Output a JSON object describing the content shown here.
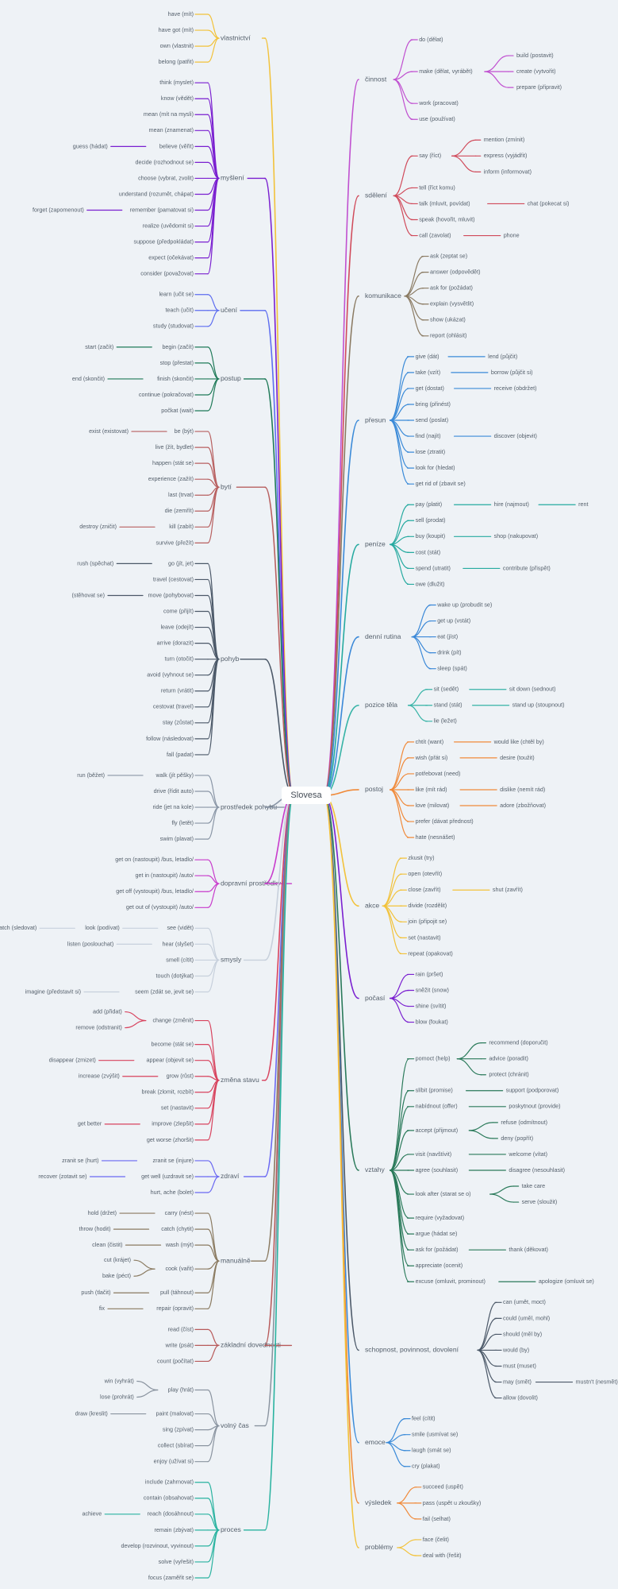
{
  "root": "Slovesa",
  "colors": [
    "#f2c23a",
    "#7a1fd0",
    "#5d6df0",
    "#1f7a58",
    "#b86060",
    "#4b5868",
    "#8a96a6",
    "#c83bcc",
    "#c7d0dc",
    "#d8435e",
    "#6a68f2",
    "#8a7a60",
    "#b85a5a",
    "#8a94a0",
    "#2ab3a0",
    "#c050d0",
    "#d04a5a",
    "#8a7a62",
    "#3a8ad8",
    "#26aaa0",
    "#3a88d8",
    "#36b3a6",
    "#f08a3a",
    "#f2c23a",
    "#7a1fd0",
    "#2a7a5a",
    "#4b5868",
    "#3a8ad8",
    "#f08a3a",
    "#f2c23a"
  ],
  "left": [
    {
      "label": "vlastnictví",
      "children": [
        {
          "label": "have (mít)"
        },
        {
          "label": "have got (mít)"
        },
        {
          "label": "own (vlastnit)"
        },
        {
          "label": "belong (patřit)"
        }
      ]
    },
    {
      "label": "myšlení",
      "children": [
        {
          "label": "think (myslet)"
        },
        {
          "label": "know (vědět)"
        },
        {
          "label": "mean (mít na mysli)"
        },
        {
          "label": "mean (znamenat)"
        },
        {
          "label": "believe (věřit)",
          "pre": "guess (hádat)"
        },
        {
          "label": "decide (rozhodnout se)"
        },
        {
          "label": "choose (vybrat, zvolit)"
        },
        {
          "label": "understand (rozumět, chápat)"
        },
        {
          "label": "remember (pamatovat si)",
          "pre": "forget (zapomenout)"
        },
        {
          "label": "realize (uvědomit si)"
        },
        {
          "label": "suppose (předpokládat)"
        },
        {
          "label": "expect (očekávat)"
        },
        {
          "label": "consider (považovat)"
        }
      ]
    },
    {
      "label": "učení",
      "children": [
        {
          "label": "learn (učit se)"
        },
        {
          "label": "teach (učit)"
        },
        {
          "label": "study (studovat)"
        }
      ]
    },
    {
      "label": "postup",
      "children": [
        {
          "label": "begin (začít)",
          "pre": "start (začít)"
        },
        {
          "label": "stop (přestat)"
        },
        {
          "label": "finish (skončit)",
          "pre": "end (skončit)"
        },
        {
          "label": "continue (pokračovat)"
        },
        {
          "label": "počkat (wait)"
        }
      ]
    },
    {
      "label": "bytí",
      "children": [
        {
          "label": "be (být)",
          "pre": "exist (existovat)"
        },
        {
          "label": "live (žít, bydlet)"
        },
        {
          "label": "happen (stát se)"
        },
        {
          "label": "experience (zažít)"
        },
        {
          "label": "last (trvat)"
        },
        {
          "label": "die (zemřít)"
        },
        {
          "label": "kill (zabít)",
          "pre": "destroy (zničit)"
        },
        {
          "label": "survive (přežít)"
        }
      ]
    },
    {
      "label": "pohyb",
      "children": [
        {
          "label": "go (jít, jet)",
          "pre": "rush (spěchat)"
        },
        {
          "label": "travel (cestovat)"
        },
        {
          "label": "move (pohybovat)",
          "pre": "(stěhovat se)"
        },
        {
          "label": "come (přijít)"
        },
        {
          "label": "leave (odejít)"
        },
        {
          "label": "arrive (dorazit)"
        },
        {
          "label": "turn (otočit)"
        },
        {
          "label": "avoid (vyhnout se)"
        },
        {
          "label": "return (vrátit)"
        },
        {
          "label": "cestovat (travel)"
        },
        {
          "label": "stay (zůstat)"
        },
        {
          "label": "follow (následovat)"
        },
        {
          "label": "fall (padat)"
        }
      ]
    },
    {
      "label": "prostředek pohybu",
      "children": [
        {
          "label": "walk (jít pěšky)",
          "pre": "run (běžet)"
        },
        {
          "label": "drive (řídit auto)"
        },
        {
          "label": "ride (jet na kole)"
        },
        {
          "label": "fly (letět)"
        },
        {
          "label": "swim (plavat)"
        }
      ]
    },
    {
      "label": "dopravní prostředky",
      "children": [
        {
          "label": "get on (nastoupit) /bus, letadlo/"
        },
        {
          "label": "get in (nastoupit) /auto/"
        },
        {
          "label": "get off (vystoupit) /bus, letadlo/"
        },
        {
          "label": "get out of (vystoupit) /auto/"
        }
      ]
    },
    {
      "label": "smysly",
      "children": [
        {
          "label": "see (vidět)",
          "pre": "look (podívat)",
          "pre2": "watch (sledovat)"
        },
        {
          "label": "hear (slyšet)",
          "pre": "listen (poslouchat)"
        },
        {
          "label": "smell (cítit)"
        },
        {
          "label": "touch (dotýkat)"
        },
        {
          "label": "seem (zdát se, jevit se)",
          "pre": "imagine (představit si)"
        }
      ]
    },
    {
      "label": "změna stavu",
      "children": [
        {
          "label": "change (změnit)",
          "pres": [
            "add (přidat)",
            "remove (odstranit)"
          ]
        },
        {
          "label": "become (stát se)"
        },
        {
          "label": "appear (objevit se)",
          "pre": "disappear (zmizet)"
        },
        {
          "label": "grow (růst)",
          "pre": "increase (zvýšit)"
        },
        {
          "label": "break (zlomit, rozbít)"
        },
        {
          "label": "set (nastavit)"
        },
        {
          "label": "improve (zlepšit)",
          "pre": "get better"
        },
        {
          "label": "get worse (zhoršit)"
        }
      ]
    },
    {
      "label": "zdraví",
      "children": [
        {
          "label": "zranit se (injure)",
          "pre": "zranit se (hurt)"
        },
        {
          "label": "get well (uzdravit se)",
          "pre": "recover (zotavit se)"
        },
        {
          "label": "hurt, ache (bolet)"
        }
      ]
    },
    {
      "label": "manuálně",
      "children": [
        {
          "label": "carry (nést)",
          "pre": "hold (držet)"
        },
        {
          "label": "catch (chytit)",
          "pre": "throw (hodit)"
        },
        {
          "label": "wash (mýt)",
          "pre": "clean (čistit)"
        },
        {
          "label": "cook (vařit)",
          "pres": [
            "cut (krájet)",
            "bake (péct)"
          ]
        },
        {
          "label": "pull (táhnout)",
          "pre": "push (tlačit)"
        },
        {
          "label": "repair (opravit)",
          "pre": "fix"
        }
      ]
    },
    {
      "label": "základní dovednosti",
      "children": [
        {
          "label": "read (číst)"
        },
        {
          "label": "write (psát)"
        },
        {
          "label": "count (počítat)"
        }
      ]
    },
    {
      "label": "volný čas",
      "children": [
        {
          "label": "play (hrát)",
          "pres": [
            "win (vyhrát)",
            "lose (prohrát)"
          ]
        },
        {
          "label": "paint (malovat)",
          "pre": "draw (kreslit)"
        },
        {
          "label": "sing (zpívat)"
        },
        {
          "label": "collect (sbírat)"
        },
        {
          "label": "enjoy (užívat si)"
        }
      ]
    },
    {
      "label": "proces",
      "children": [
        {
          "label": "include (zahrnovat)"
        },
        {
          "label": "contain (obsahovat)"
        },
        {
          "label": "reach (dosáhnout)",
          "pre": "achieve"
        },
        {
          "label": "remain (zbývat)"
        },
        {
          "label": "develop (rozvinout, vyvinout)"
        },
        {
          "label": "solve (vyřešit)"
        },
        {
          "label": "focus (zaměřit se)"
        }
      ]
    }
  ],
  "right": [
    {
      "label": "činnost",
      "children": [
        {
          "label": "do (dělat)"
        },
        {
          "label": "make (dělat, vyrábět)",
          "subs": [
            "build (postavit)",
            "create (vytvořit)",
            "prepare (připravit)"
          ]
        },
        {
          "label": "work (pracovat)"
        },
        {
          "label": "use (používat)"
        }
      ]
    },
    {
      "label": "sdělení",
      "children": [
        {
          "label": "say (říct)",
          "subs": [
            "mention (zmínit)",
            "express (vyjádřit)",
            "inform (informovat)"
          ]
        },
        {
          "label": "tell (říct komu)"
        },
        {
          "label": "talk (mluvit, povídat)",
          "post": "chat (pokecat si)"
        },
        {
          "label": "speak (hovořit, mluvit)"
        },
        {
          "label": "call (zavolat)",
          "post": "phone"
        }
      ]
    },
    {
      "label": "komunikace",
      "children": [
        {
          "label": "ask (zeptat se)"
        },
        {
          "label": "answer (odpovědět)"
        },
        {
          "label": "ask for (požádat)"
        },
        {
          "label": "explain (vysvětlit)"
        },
        {
          "label": "show (ukázat)"
        },
        {
          "label": "report (ohlásit)"
        }
      ]
    },
    {
      "label": "přesun",
      "children": [
        {
          "label": "give (dát)",
          "post": "lend (půjčit)"
        },
        {
          "label": "take (vzít)",
          "post": "borrow (půjčit si)"
        },
        {
          "label": "get (dostat)",
          "post": "receive (obdržet)"
        },
        {
          "label": "bring (přinést)"
        },
        {
          "label": "send (poslat)"
        },
        {
          "label": "find (najít)",
          "post": "discover (objevit)"
        },
        {
          "label": "lose (ztratit)"
        },
        {
          "label": "look for (hledat)"
        },
        {
          "label": "get rid of (zbavit se)"
        }
      ]
    },
    {
      "label": "peníze",
      "children": [
        {
          "label": "pay (platit)",
          "post": "hire (najmout)",
          "post2": "rent"
        },
        {
          "label": "sell (prodat)"
        },
        {
          "label": "buy (koupit)",
          "post": "shop (nakupovat)"
        },
        {
          "label": "cost (stát)"
        },
        {
          "label": "spend (utratit)",
          "post": "contribute (přispět)"
        },
        {
          "label": "owe (dlužit)"
        }
      ]
    },
    {
      "label": "denní rutina",
      "children": [
        {
          "label": "wake up (probudit se)"
        },
        {
          "label": "get up (vstát)"
        },
        {
          "label": "eat (jíst)"
        },
        {
          "label": "drink (pít)"
        },
        {
          "label": "sleep (spát)"
        }
      ]
    },
    {
      "label": "pozice těla",
      "children": [
        {
          "label": "sit (sedět)",
          "post": "sit down (sednout)"
        },
        {
          "label": "stand (stát)",
          "post": "stand up (stoupnout)"
        },
        {
          "label": "lie (ležet)"
        }
      ]
    },
    {
      "label": "postoj",
      "children": [
        {
          "label": "chtít (want)",
          "post": "would like (chtěl by)"
        },
        {
          "label": "wish (přát si)",
          "post": "desire (toužit)"
        },
        {
          "label": "potřebovat (need)"
        },
        {
          "label": "like (mít rád)",
          "post": "dislike (nemít rád)"
        },
        {
          "label": "love (milovat)",
          "post": "adore (zbožňovat)"
        },
        {
          "label": "prefer (dávat přednost)"
        },
        {
          "label": "hate (nesnášet)"
        }
      ]
    },
    {
      "label": "akce",
      "children": [
        {
          "label": "zkusit (try)"
        },
        {
          "label": "open (otevřít)"
        },
        {
          "label": "close (zavřít)",
          "post": "shut (zavřít)"
        },
        {
          "label": "divide (rozdělit)"
        },
        {
          "label": "join (připojit se)"
        },
        {
          "label": "set (nastavit)"
        },
        {
          "label": "repeat (opakovat)"
        }
      ]
    },
    {
      "label": "počasí",
      "children": [
        {
          "label": "rain (pršet)"
        },
        {
          "label": "sněžit (snow)"
        },
        {
          "label": "shine (svítit)"
        },
        {
          "label": "blow (foukat)"
        }
      ]
    },
    {
      "label": "vztahy",
      "children": [
        {
          "label": "pomoct (help)",
          "subs": [
            "recommend (doporučit)",
            "advice (poradit)",
            "protect (chránit)"
          ]
        },
        {
          "label": "slíbit (promise)",
          "post": "support (podporovat)"
        },
        {
          "label": "nabídnout (offer)",
          "post": "poskytnout (provide)"
        },
        {
          "label": "accept (přijmout)",
          "subs": [
            "refuse (odmítnout)",
            "deny (popřít)"
          ]
        },
        {
          "label": "visit (navštívit)",
          "post": "welcome (vítat)"
        },
        {
          "label": "agree (souhlasit)",
          "post": "disagree (nesouhlasit)"
        },
        {
          "label": "look after (starat se o)",
          "subs": [
            "take care",
            "serve (sloužit)"
          ]
        },
        {
          "label": "require (vyžadovat)"
        },
        {
          "label": "argue (hádat se)"
        },
        {
          "label": "ask for (požádat)",
          "post": "thank (děkovat)"
        },
        {
          "label": "appreciate (ocenit)"
        },
        {
          "label": "excuse (omluvit, prominout)",
          "post": "apologize (omluvit se)"
        }
      ]
    },
    {
      "label": "schopnost, povinnost, dovolení",
      "children": [
        {
          "label": "can (umět, moct)"
        },
        {
          "label": "could (uměl, mohl)"
        },
        {
          "label": "should (měl by)"
        },
        {
          "label": "would (by)"
        },
        {
          "label": "must (muset)"
        },
        {
          "label": "may (smět)",
          "post": "mustn't (nesmět)"
        },
        {
          "label": "allow (dovolit)"
        }
      ]
    },
    {
      "label": "emoce",
      "children": [
        {
          "label": "feel (cítit)"
        },
        {
          "label": "smile (usmívat se)"
        },
        {
          "label": "laugh (smát se)"
        },
        {
          "label": "cry (plakat)"
        }
      ]
    },
    {
      "label": "výsledek",
      "children": [
        {
          "label": "succeed (uspět)"
        },
        {
          "label": "pass (uspět u zkoušky)"
        },
        {
          "label": "fail (selhat)"
        }
      ]
    },
    {
      "label": "problémy",
      "children": [
        {
          "label": "face (čelit)"
        },
        {
          "label": "deal with (řešit)"
        }
      ]
    }
  ]
}
